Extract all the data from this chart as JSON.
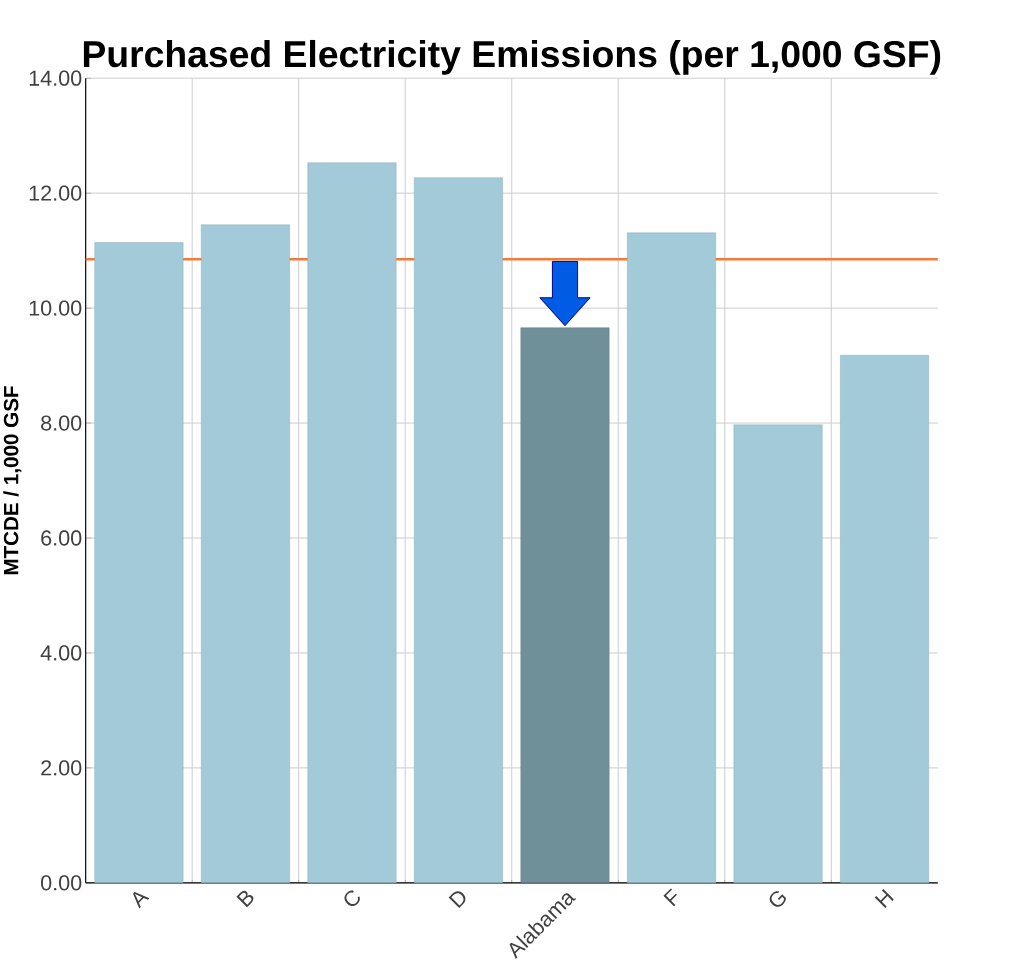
{
  "chart_data": {
    "type": "bar",
    "title": "Purchased Electricity Emissions (per 1,000 GSF)",
    "ylabel": "MTCDE / 1,000 GSF",
    "categories": [
      "A",
      "B",
      "C",
      "D",
      "Alabama",
      "F",
      "G",
      "H"
    ],
    "values": [
      11.14,
      11.45,
      12.53,
      12.27,
      9.66,
      11.31,
      7.97,
      9.18
    ],
    "colors": [
      "#a3cad8",
      "#a3cad8",
      "#a3cad8",
      "#a3cad8",
      "#6f8f99",
      "#a3cad8",
      "#a3cad8",
      "#a3cad8"
    ],
    "ylim": [
      0,
      14
    ],
    "yticks": [
      {
        "value": 0,
        "label": "0.00"
      },
      {
        "value": 2,
        "label": "2.00"
      },
      {
        "value": 4,
        "label": "4.00"
      },
      {
        "value": 6,
        "label": "6.00"
      },
      {
        "value": 8,
        "label": "8.00"
      },
      {
        "value": 10,
        "label": "10.00"
      },
      {
        "value": 12,
        "label": "12.00"
      },
      {
        "value": 14,
        "label": "14.00"
      }
    ],
    "ref_lines": [
      {
        "axis": "y",
        "value": 10.85,
        "color": "#f47a3c"
      }
    ],
    "grid": true
  }
}
